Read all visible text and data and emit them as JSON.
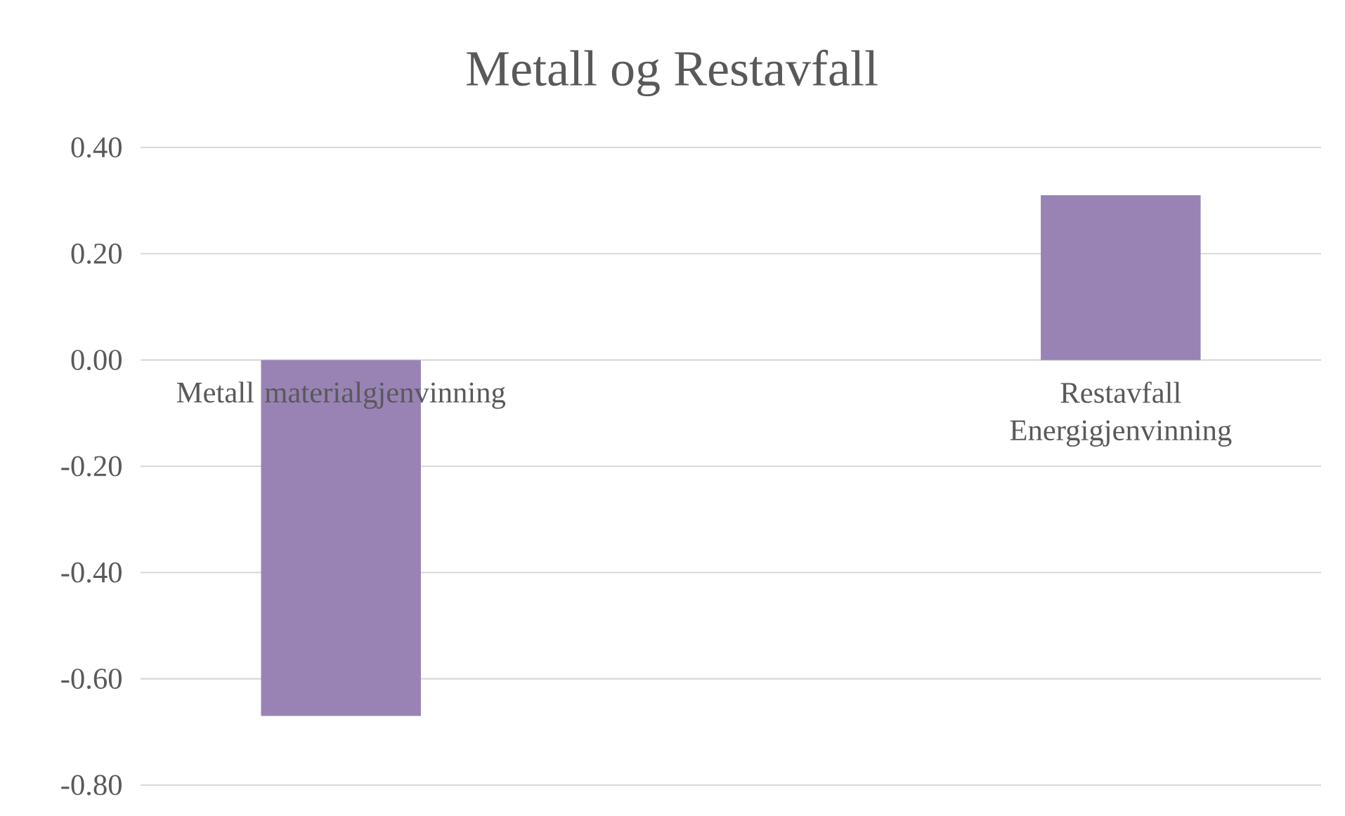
{
  "chart_data": {
    "type": "bar",
    "title": "Metall og Restavfall",
    "categories": [
      "Metall materialgjenvinning",
      "Restavfall Energigjenvinning"
    ],
    "values": [
      -0.67,
      0.31
    ],
    "color": "#9983b5",
    "ylim": [
      -0.8,
      0.4
    ],
    "yticks": [
      {
        "value": -0.8,
        "label": "-0.80"
      },
      {
        "value": -0.6,
        "label": "-0.60"
      },
      {
        "value": -0.4,
        "label": "-0.40"
      },
      {
        "value": -0.2,
        "label": "-0.20"
      },
      {
        "value": 0,
        "label": "0.00"
      },
      {
        "value": 0.2,
        "label": "0.20"
      },
      {
        "value": 0.4,
        "label": "0.40"
      }
    ],
    "grid": "y"
  }
}
